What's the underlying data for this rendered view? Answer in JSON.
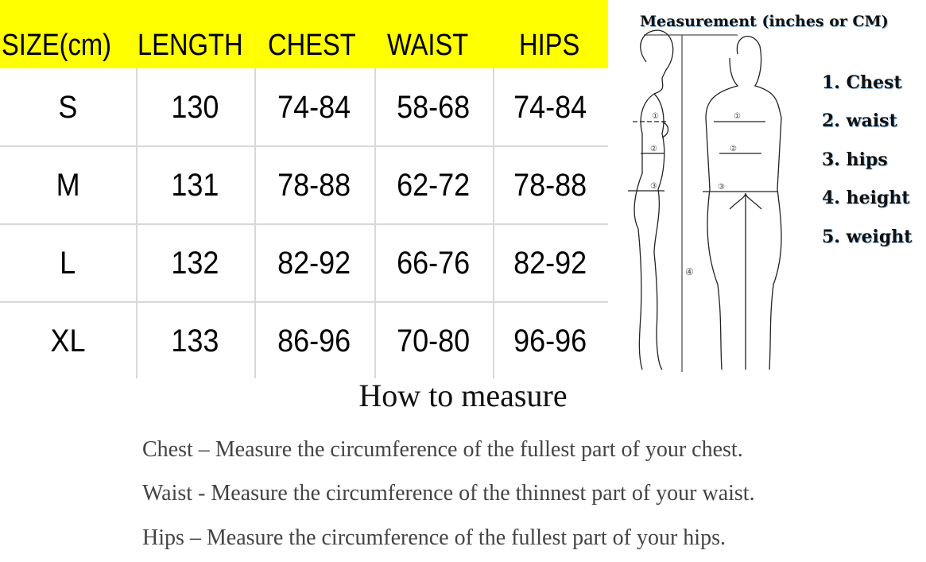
{
  "table": {
    "header_bg": "#ffff00",
    "headers": [
      "SIZE(cm)",
      "LENGTH",
      "CHEST",
      "WAIST",
      "HIPS"
    ],
    "rows": [
      [
        "S",
        "130",
        "74-84",
        "58-68",
        "74-84"
      ],
      [
        "M",
        "131",
        "78-88",
        "62-72",
        "78-88"
      ],
      [
        "L",
        "132",
        "82-92",
        "66-76",
        "82-92"
      ],
      [
        "XL",
        "133",
        "86-96",
        "70-80",
        "96-96"
      ]
    ]
  },
  "diagram": {
    "title": "Measurement (inches or CM)",
    "items": [
      "1. Chest",
      "2. waist",
      "3. hips",
      "4. height",
      "5. weight"
    ],
    "markers": [
      "①",
      "②",
      "③",
      "④"
    ]
  },
  "howto": {
    "title": "How to measure",
    "lines": [
      "Chest  –  Measure the circumference of the fullest part of your chest.",
      "Waist - Measure the circumference of the thinnest part of your waist.",
      "Hips  –  Measure the circumference of the fullest part of your hips."
    ]
  }
}
